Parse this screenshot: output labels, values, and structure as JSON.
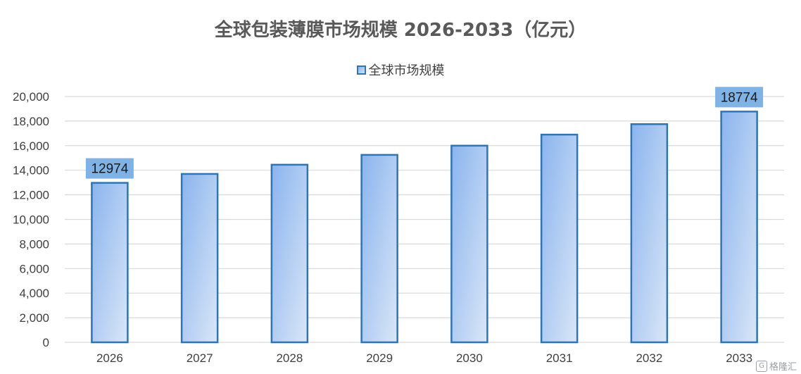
{
  "chart_data": {
    "type": "bar",
    "title": "全球包装薄膜市场规模 2026-2033（亿元）",
    "categories": [
      "2026",
      "2027",
      "2028",
      "2029",
      "2030",
      "2031",
      "2032",
      "2033"
    ],
    "series": [
      {
        "name": "全球市场规模",
        "values": [
          12974,
          13700,
          14450,
          15250,
          16000,
          16900,
          17750,
          18774
        ]
      }
    ],
    "data_labels": [
      {
        "category": "2026",
        "text": "12974"
      },
      {
        "category": "2033",
        "text": "18774"
      }
    ],
    "ylim": [
      0,
      20000
    ],
    "yticks": [
      "0",
      "2,000",
      "4,000",
      "6,000",
      "8,000",
      "10,000",
      "12,000",
      "14,000",
      "16,000",
      "18,000",
      "20,000"
    ],
    "xlabel": "",
    "ylabel": "",
    "grid": true,
    "legend_position": "top-center",
    "colors": {
      "bar_border": "#2e75b6",
      "bar_fill_start": "#8ab4ee",
      "bar_fill_end": "#dae6f7",
      "label_box": "#7fb2e5",
      "grid": "#d9d9d9"
    }
  },
  "watermark": {
    "icon": "g-logo-icon",
    "icon_glyph": "G",
    "text": "格隆汇"
  }
}
